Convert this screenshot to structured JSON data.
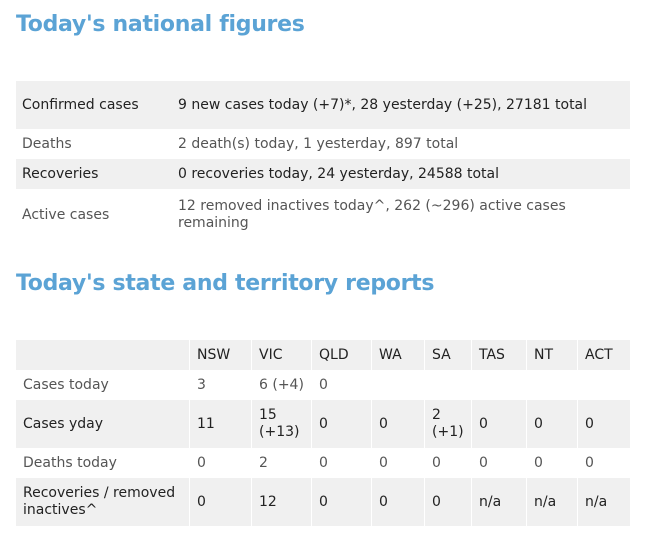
{
  "national": {
    "heading": "Today's national figures",
    "rows": [
      {
        "label": "Confirmed cases",
        "value": "9 new cases today (+7)*, 28 yesterday (+25), 27181 total"
      },
      {
        "label": "Deaths",
        "value": "2 death(s) today, 1 yesterday, 897 total"
      },
      {
        "label": "Recoveries",
        "value": "0 recoveries today, 24 yesterday, 24588 total"
      },
      {
        "label": "Active cases",
        "value": "12 removed inactives today^, 262 (~296) active cases remaining"
      }
    ]
  },
  "states": {
    "heading": "Today's state and territory reports",
    "columns": [
      "",
      "NSW",
      "VIC",
      "QLD",
      "WA",
      "SA",
      "TAS",
      "NT",
      "ACT"
    ],
    "rows": [
      {
        "label": "Cases today",
        "cells": [
          "3",
          "6 (+4)",
          "0",
          "",
          "",
          "",
          "",
          ""
        ]
      },
      {
        "label": "Cases yday",
        "cells": [
          "11",
          "15 (+13)",
          "0",
          "0",
          "2 (+1)",
          "0",
          "0",
          "0"
        ]
      },
      {
        "label": "Deaths today",
        "cells": [
          "0",
          "2",
          "0",
          "0",
          "0",
          "0",
          "0",
          "0"
        ]
      },
      {
        "label": "Recoveries / removed inactives^",
        "cells": [
          "0",
          "12",
          "0",
          "0",
          "0",
          "n/a",
          "n/a",
          "n/a"
        ]
      }
    ]
  }
}
